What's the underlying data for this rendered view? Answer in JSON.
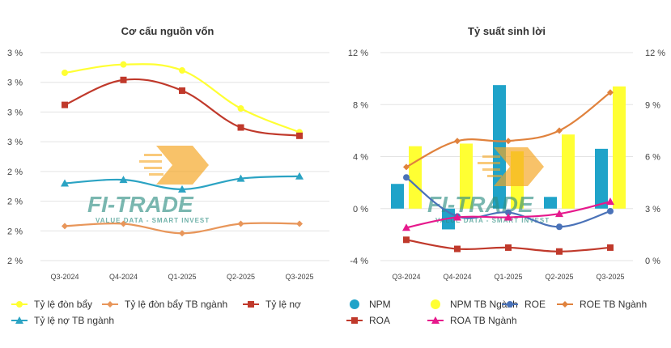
{
  "watermark": {
    "logo_text": "FI-TRADE",
    "tagline": "VALUE DATA - SMART INVEST",
    "colors": {
      "primary": "#2f8f83",
      "accent": "#f5a623"
    }
  },
  "chart_data": [
    {
      "type": "line",
      "title": "Cơ cấu nguồn vốn",
      "categories": [
        "Q3-2024",
        "Q4-2024",
        "Q1-2025",
        "Q2-2025",
        "Q3-2025"
      ],
      "y_tick_labels": [
        "3 %",
        "3 %",
        "3 %",
        "3 %",
        "2 %",
        "2 %",
        "2 %",
        "2 %"
      ],
      "ylim": [
        1.55,
        3.3
      ],
      "grid": true,
      "legend_position": "bottom",
      "series": [
        {
          "name": "Tỷ lệ đòn bẩy",
          "color": "#ffff33",
          "marker": "circle",
          "smooth": true,
          "values": [
            3.13,
            3.2,
            3.15,
            2.83,
            2.63
          ]
        },
        {
          "name": "Tỷ lệ đòn bẩy TB ngành",
          "color": "#e8965a",
          "marker": "diamond",
          "smooth": true,
          "values": [
            1.84,
            1.86,
            1.78,
            1.86,
            1.86
          ]
        },
        {
          "name": "Tỷ lệ nợ",
          "color": "#c0392b",
          "marker": "square",
          "smooth": true,
          "values": [
            2.86,
            3.07,
            2.98,
            2.67,
            2.6
          ]
        },
        {
          "name": "Tỷ lệ nợ TB ngành",
          "color": "#2ba3c3",
          "marker": "triangle",
          "smooth": true,
          "values": [
            2.2,
            2.23,
            2.15,
            2.24,
            2.26
          ]
        }
      ]
    },
    {
      "type": "bar+line",
      "title": "Tỷ suất sinh lời",
      "categories": [
        "Q3-2024",
        "Q4-2024",
        "Q1-2025",
        "Q2-2025",
        "Q3-2025"
      ],
      "y_left_ticks": [
        "12 %",
        "8 %",
        "4 %",
        "0 %",
        "-4 %"
      ],
      "y_left_range": [
        -4,
        12
      ],
      "y_right_ticks": [
        "12 %",
        "9 %",
        "6 %",
        "3 %",
        "0 %"
      ],
      "y_right_range": [
        0,
        12
      ],
      "grid": true,
      "legend_position": "bottom",
      "series": [
        {
          "name": "NPM",
          "type": "bar",
          "axis": "left",
          "color": "#1fa3c9",
          "values": [
            1.9,
            -1.6,
            9.5,
            0.9,
            4.6
          ]
        },
        {
          "name": "NPM TB Ngành",
          "type": "bar",
          "axis": "left",
          "color": "#ffff33",
          "values": [
            4.8,
            5.0,
            4.4,
            5.7,
            9.4
          ]
        },
        {
          "name": "ROE",
          "type": "line",
          "axis": "left",
          "color": "#4a72b8",
          "marker": "circle",
          "values": [
            2.4,
            -0.6,
            -0.3,
            -1.4,
            -0.2
          ]
        },
        {
          "name": "ROE TB Ngành",
          "type": "line",
          "axis": "right",
          "color": "#e0823d",
          "marker": "diamond",
          "values": [
            5.4,
            6.9,
            6.9,
            7.5,
            9.7
          ]
        },
        {
          "name": "ROA",
          "type": "line",
          "axis": "left",
          "color": "#c0392b",
          "marker": "square",
          "values": [
            -2.4,
            -3.1,
            -3.0,
            -3.3,
            -3.0
          ]
        },
        {
          "name": "ROA TB Ngành",
          "type": "line",
          "axis": "right",
          "color": "#e6198c",
          "marker": "triangle",
          "values": [
            1.9,
            2.5,
            2.5,
            2.7,
            3.4
          ]
        }
      ]
    }
  ]
}
